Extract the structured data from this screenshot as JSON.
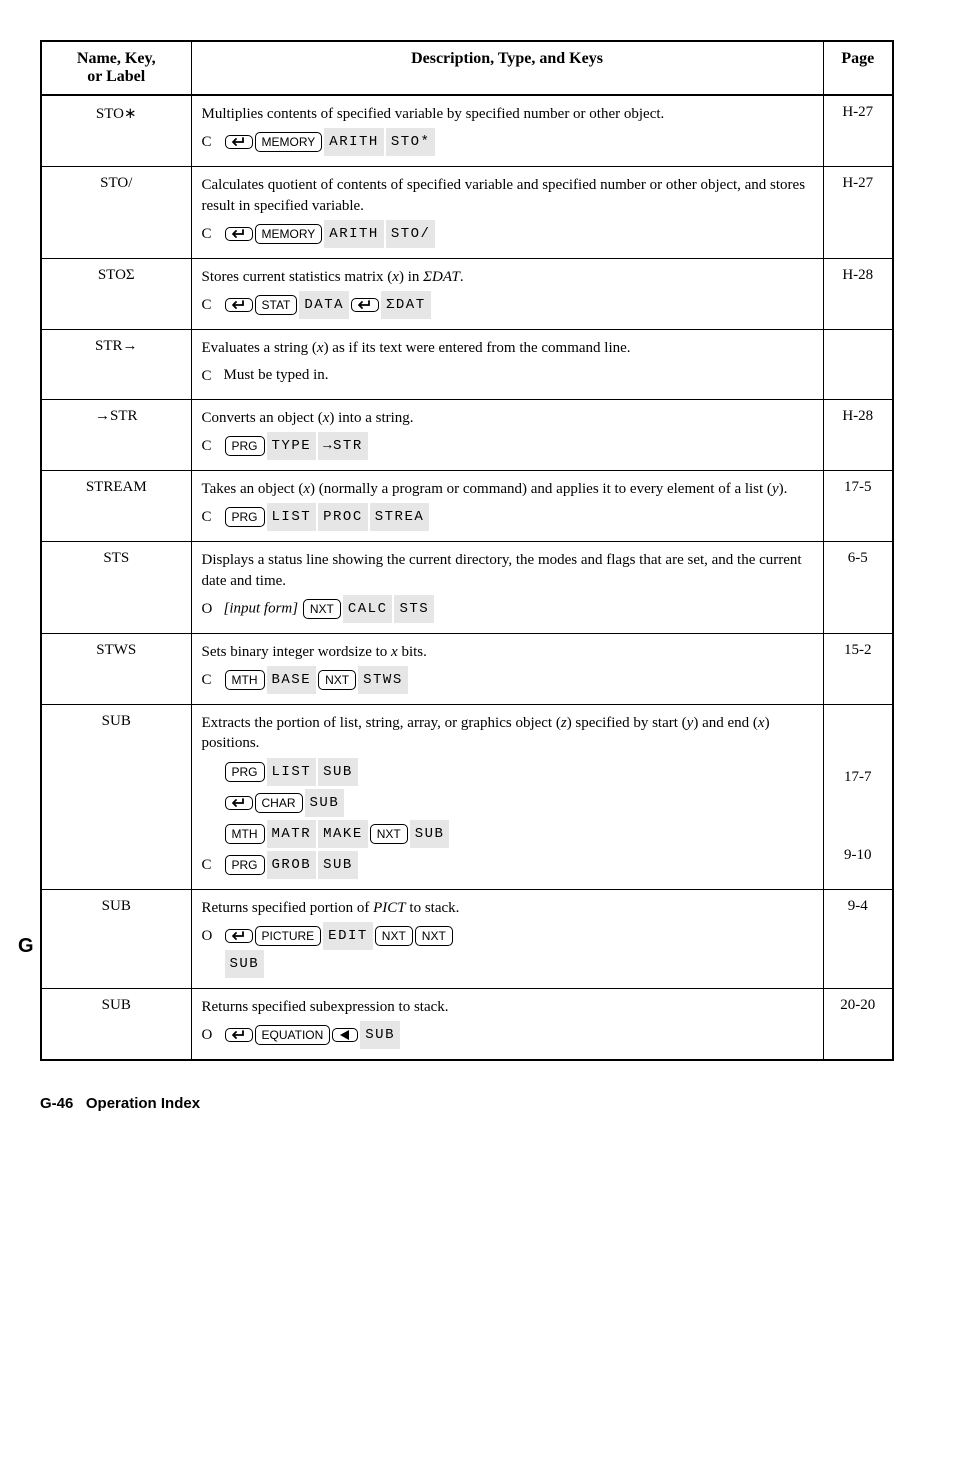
{
  "tab_letter": "G",
  "headers": {
    "col1a": "Name, Key,",
    "col1b": "or Label",
    "col2": "Description, Type, and Keys",
    "col3": "Page"
  },
  "rows": [
    {
      "name": "STO∗",
      "page": "H-27",
      "desc_lines": [
        "Multiplies contents of specified variable by specified number or other object."
      ],
      "cmd": {
        "letter": "C",
        "seq": [
          {
            "t": "shift",
            "dir": "left"
          },
          {
            "t": "key",
            "v": "MEMORY"
          },
          {
            "t": "menu",
            "v": "ARITH"
          },
          {
            "t": "menu",
            "v": "STO*"
          }
        ]
      }
    },
    {
      "name": "STO/",
      "page": "H-27",
      "desc_lines": [
        "Calculates quotient of contents of specified variable and specified number or other object, and stores result in specified variable."
      ],
      "cmd": {
        "letter": "C",
        "seq": [
          {
            "t": "shift",
            "dir": "left"
          },
          {
            "t": "key",
            "v": "MEMORY"
          },
          {
            "t": "menu",
            "v": "ARITH"
          },
          {
            "t": "menu",
            "v": "STO/"
          }
        ]
      }
    },
    {
      "name": "STOΣ",
      "page": "H-28",
      "desc_html": "Stores current statistics matrix (<span class='ital'>x</span>) in <span class='ital'>ΣDAT</span>.",
      "cmd": {
        "letter": "C",
        "seq": [
          {
            "t": "shift",
            "dir": "left"
          },
          {
            "t": "key",
            "v": "STAT"
          },
          {
            "t": "menu",
            "v": "DATA"
          },
          {
            "t": "shift",
            "dir": "left"
          },
          {
            "t": "menu",
            "v": "ΣDAT"
          }
        ]
      }
    },
    {
      "name": "STR→",
      "page": "",
      "desc_html": "Evaluates a string (<span class='ital'>x</span>) as if its text were entered from the command line.",
      "cmd": {
        "letter": "C",
        "plain": "Must be typed in."
      }
    },
    {
      "name": "→STR",
      "page": "H-28",
      "desc_html": "Converts an object (<span class='ital'>x</span>) into a string.",
      "cmd": {
        "letter": "C",
        "seq": [
          {
            "t": "key",
            "v": "PRG"
          },
          {
            "t": "menu",
            "v": "TYPE"
          },
          {
            "t": "menu",
            "v": "→STR"
          }
        ]
      }
    },
    {
      "name": "STREAM",
      "page": "17-5",
      "desc_html": "Takes an object (<span class='ital'>x</span>) (normally a program or command) and applies it to every element of a list (<span class='ital'>y</span>).",
      "cmd": {
        "letter": "C",
        "seq": [
          {
            "t": "key",
            "v": "PRG"
          },
          {
            "t": "menu",
            "v": "LIST"
          },
          {
            "t": "menu",
            "v": "PROC"
          },
          {
            "t": "menu",
            "v": "STREA"
          }
        ]
      }
    },
    {
      "name": "STS",
      "page": "6-5",
      "desc_lines": [
        "Displays a status line showing the current directory, the modes and flags that are set, and the current date and time."
      ],
      "cmd": {
        "letter": "O",
        "seq": [
          {
            "t": "italic",
            "v": "[input form]"
          },
          {
            "t": "key",
            "v": "NXT"
          },
          {
            "t": "menu",
            "v": "CALC"
          },
          {
            "t": "menu",
            "v": "STS"
          }
        ]
      }
    },
    {
      "name": "STWS",
      "page": "15-2",
      "desc_html": "Sets binary integer wordsize to <span class='ital'>x</span> bits.",
      "cmd": {
        "letter": "C",
        "seq": [
          {
            "t": "key",
            "v": "MTH"
          },
          {
            "t": "menu",
            "v": "BASE"
          },
          {
            "t": "key",
            "v": "NXT"
          },
          {
            "t": "menu",
            "v": "STWS"
          }
        ]
      }
    },
    {
      "name": "SUB",
      "page_list": [
        "17-7",
        "",
        "",
        "9-10"
      ],
      "desc_html": "Extracts the portion of list, string, array, or graphics object (<span class='ital'>z</span>) specified by start (<span class='ital'>y</span>) and end (<span class='ital'>x</span>) positions.",
      "multi_cmds": [
        {
          "letter": "",
          "seq": [
            {
              "t": "key",
              "v": "PRG"
            },
            {
              "t": "menu",
              "v": "LIST"
            },
            {
              "t": "menu",
              "v": "SUB"
            }
          ]
        },
        {
          "letter": "",
          "seq": [
            {
              "t": "shift",
              "dir": "left"
            },
            {
              "t": "key",
              "v": "CHAR"
            },
            {
              "t": "menu",
              "v": "SUB"
            }
          ]
        },
        {
          "letter": "",
          "seq": [
            {
              "t": "key",
              "v": "MTH"
            },
            {
              "t": "menu",
              "v": "MATR"
            },
            {
              "t": "menu",
              "v": "MAKE"
            },
            {
              "t": "key",
              "v": "NXT"
            },
            {
              "t": "menu",
              "v": "SUB"
            }
          ]
        },
        {
          "letter": "C",
          "seq": [
            {
              "t": "key",
              "v": "PRG"
            },
            {
              "t": "menu",
              "v": "GROB"
            },
            {
              "t": "menu",
              "v": "SUB"
            }
          ]
        }
      ]
    },
    {
      "name": "SUB",
      "page": "9-4",
      "desc_html": "Returns specified portion of <span class='ital'>PICT</span> to stack.",
      "cmd": {
        "letter": "O",
        "seq": [
          {
            "t": "shift",
            "dir": "left"
          },
          {
            "t": "key",
            "v": "PICTURE"
          },
          {
            "t": "menu",
            "v": "EDIT"
          },
          {
            "t": "key",
            "v": "NXT"
          },
          {
            "t": "key",
            "v": "NXT"
          },
          {
            "t": "menu",
            "v": "SUB"
          }
        ],
        "wrap_after": 5
      }
    },
    {
      "name": "SUB",
      "page": "20-20",
      "desc_lines": [
        "Returns specified subexpression to stack."
      ],
      "cmd": {
        "letter": "O",
        "seq": [
          {
            "t": "shift",
            "dir": "left"
          },
          {
            "t": "key",
            "v": "EQUATION"
          },
          {
            "t": "shift",
            "dir": "tri"
          },
          {
            "t": "menu",
            "v": "SUB"
          }
        ]
      }
    }
  ],
  "footer": {
    "left": "G-46",
    "right": "Operation Index"
  }
}
